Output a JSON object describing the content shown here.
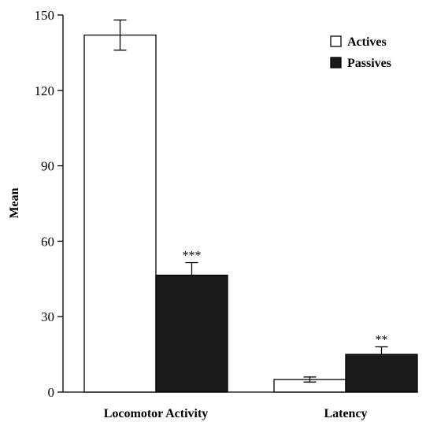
{
  "chart_data": {
    "type": "bar",
    "categories": [
      "Locomotor Activity",
      "Latency"
    ],
    "series": [
      {
        "name": "Actives",
        "values": [
          142,
          5
        ],
        "errors": [
          6,
          1
        ],
        "color": "#ffffff"
      },
      {
        "name": "Passives",
        "values": [
          46.5,
          15
        ],
        "errors": [
          5,
          3
        ],
        "color": "#1a1a1a"
      }
    ],
    "significance": [
      {
        "category": "Locomotor Activity",
        "series": "Passives",
        "label": "***"
      },
      {
        "category": "Latency",
        "series": "Passives",
        "label": "**"
      }
    ],
    "ylabel": "Mean",
    "xlabel": "",
    "ylim": [
      0,
      150
    ],
    "yticks": [
      0,
      30,
      60,
      90,
      120,
      150
    ],
    "legend_position": "top-right",
    "grid": false
  }
}
